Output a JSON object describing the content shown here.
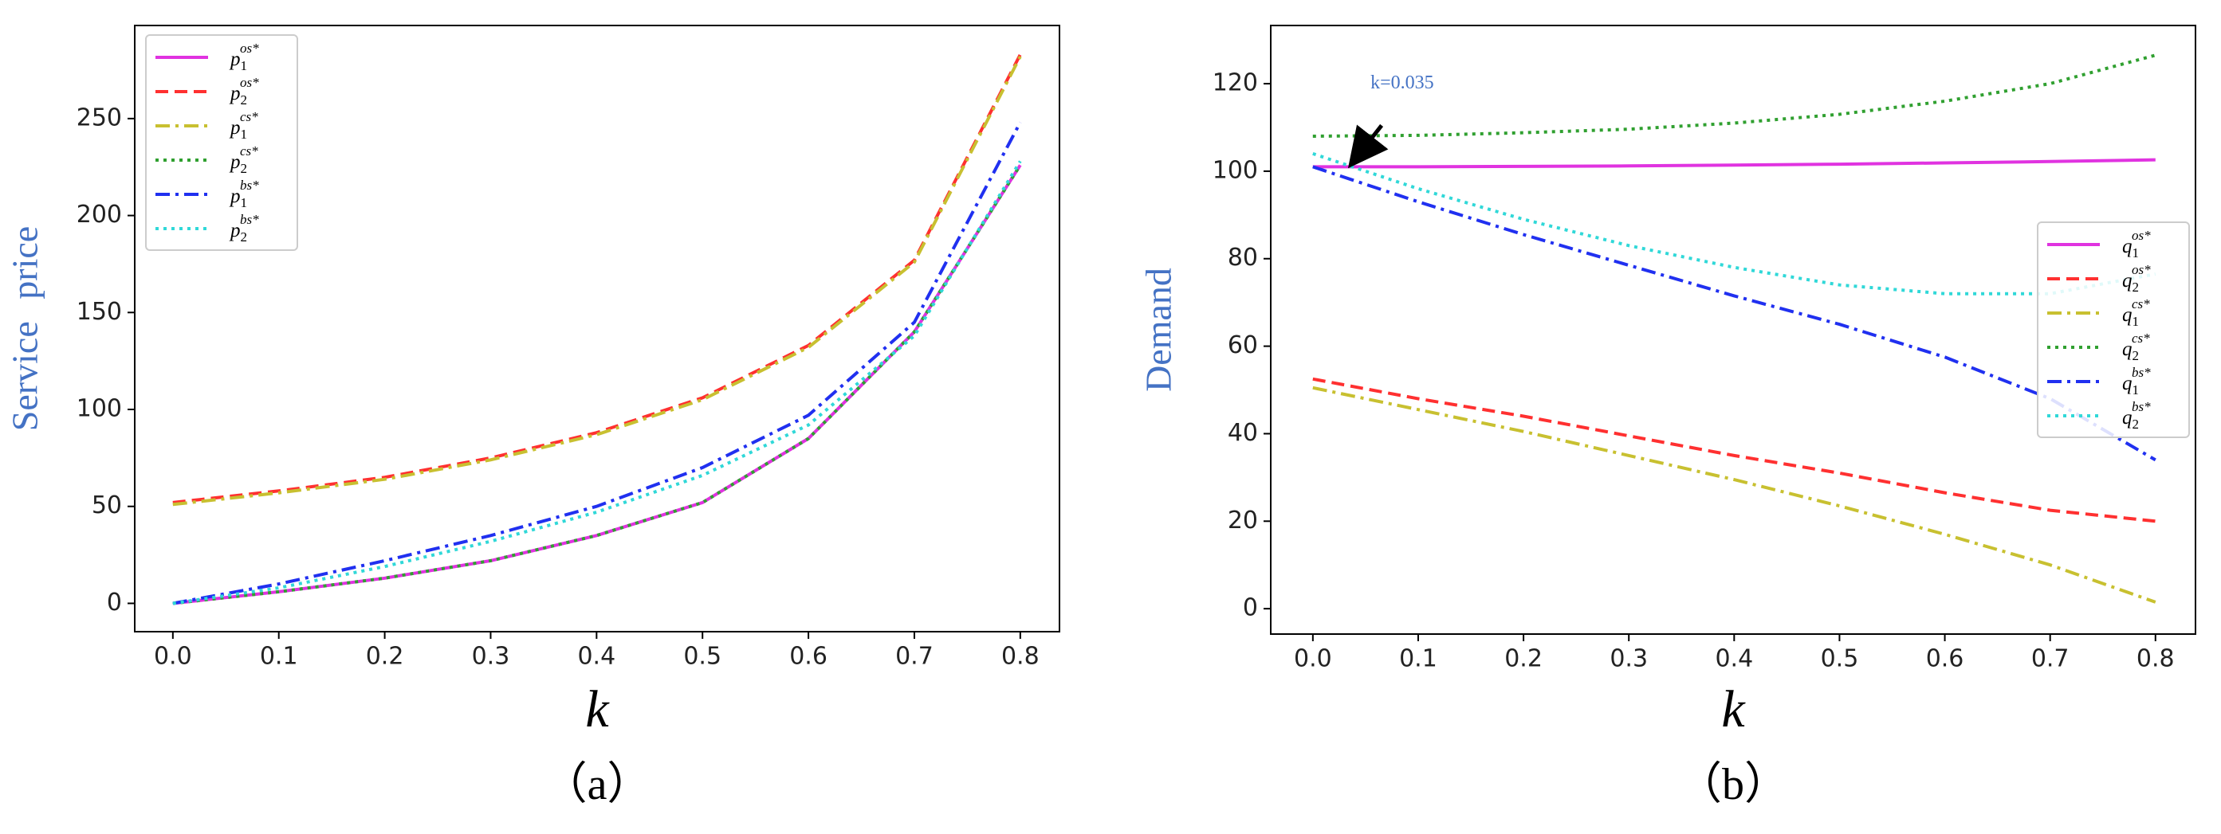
{
  "chart_data": [
    {
      "type": "line",
      "caption": "（a）",
      "x_label": "k",
      "y_label": "Service price",
      "legend": "upper left",
      "x": [
        0,
        0.1,
        0.2,
        0.3,
        0.4,
        0.5,
        0.6,
        0.7,
        0.8
      ],
      "xlim": [
        -0.036,
        0.837
      ],
      "xticks": [
        {
          "value": 0,
          "label": "0.0"
        },
        0.1,
        0.2,
        0.3,
        0.4,
        0.5,
        0.6,
        0.7,
        0.8
      ],
      "ylim": [
        -14.6,
        298
      ],
      "yticks": [
        0,
        50,
        100,
        150,
        200,
        250
      ],
      "series": [
        {
          "name": {
            "base": "p",
            "sub": "1",
            "sup": "os*"
          },
          "color": "#e033e0",
          "linestyle": "solid",
          "values": [
            0,
            6,
            13,
            22,
            35,
            52,
            85,
            140,
            226
          ]
        },
        {
          "name": {
            "base": "p",
            "sub": "2",
            "sup": "os*"
          },
          "color": "#ff3030",
          "linestyle": "dashed",
          "values": [
            52,
            58,
            65,
            75,
            88,
            106,
            133,
            177,
            283
          ]
        },
        {
          "name": {
            "base": "p",
            "sub": "1",
            "sup": "cs*"
          },
          "color": "#c8c030",
          "linestyle": "dashdot",
          "values": [
            51,
            57,
            64,
            74,
            87,
            105,
            132,
            176,
            282
          ]
        },
        {
          "name": {
            "base": "p",
            "sub": "2",
            "sup": "cs*"
          },
          "color": "#30a030",
          "linestyle": "dotted",
          "values": [
            0,
            6,
            13,
            22,
            35,
            52,
            85,
            140,
            226
          ]
        },
        {
          "name": {
            "base": "p",
            "sub": "1",
            "sup": "bs*"
          },
          "color": "#2030f0",
          "linestyle": "dashdot",
          "values": [
            0,
            10,
            22,
            35,
            50,
            70,
            97,
            145,
            248
          ]
        },
        {
          "name": {
            "base": "p",
            "sub": "2",
            "sup": "bs*"
          },
          "color": "#30d8d8",
          "linestyle": "dotted",
          "values": [
            0,
            8,
            19,
            32,
            47,
            66,
            92,
            138,
            228
          ]
        }
      ]
    },
    {
      "type": "line",
      "caption": "（b）",
      "x_label": "k",
      "y_label": "Demand",
      "legend": "center right",
      "x": [
        0,
        0.1,
        0.2,
        0.3,
        0.4,
        0.5,
        0.6,
        0.7,
        0.8
      ],
      "xlim": [
        -0.04,
        0.838
      ],
      "xticks": [
        {
          "value": 0,
          "label": "0.0"
        },
        0.1,
        0.2,
        0.3,
        0.4,
        0.5,
        0.6,
        0.7,
        0.8
      ],
      "ylim": [
        -5.8,
        133.3
      ],
      "yticks": [
        0,
        20,
        40,
        60,
        80,
        100,
        120
      ],
      "annotation": {
        "text": "k=0.035",
        "x": 0.035,
        "y": 101
      },
      "series": [
        {
          "name": {
            "base": "q",
            "sub": "1",
            "sup": "os*"
          },
          "color": "#e033e0",
          "linestyle": "solid",
          "values": [
            101,
            101,
            101.1,
            101.2,
            101.4,
            101.6,
            101.9,
            102.2,
            102.6
          ]
        },
        {
          "name": {
            "base": "q",
            "sub": "2",
            "sup": "os*"
          },
          "color": "#ff3030",
          "linestyle": "dashed",
          "values": [
            52.5,
            48,
            44,
            39.5,
            35,
            31,
            26.5,
            22.5,
            20
          ]
        },
        {
          "name": {
            "base": "q",
            "sub": "1",
            "sup": "cs*"
          },
          "color": "#c8c030",
          "linestyle": "dashdot",
          "values": [
            50.5,
            45.5,
            40.5,
            35,
            29.5,
            23.5,
            17,
            10,
            1.5
          ]
        },
        {
          "name": {
            "base": "q",
            "sub": "2",
            "sup": "cs*"
          },
          "color": "#30a030",
          "linestyle": "dotted",
          "values": [
            108,
            108.2,
            108.8,
            109.6,
            111,
            113,
            116,
            120,
            126.5
          ]
        },
        {
          "name": {
            "base": "q",
            "sub": "1",
            "sup": "bs*"
          },
          "color": "#2030f0",
          "linestyle": "dashdot",
          "values": [
            101,
            93,
            85.5,
            78.5,
            71.5,
            65,
            57.5,
            48,
            34
          ]
        },
        {
          "name": {
            "base": "q",
            "sub": "2",
            "sup": "bs*"
          },
          "color": "#30d8d8",
          "linestyle": "dotted",
          "values": [
            104,
            96,
            89,
            83,
            78,
            74,
            72,
            72,
            76.5
          ]
        }
      ]
    }
  ]
}
